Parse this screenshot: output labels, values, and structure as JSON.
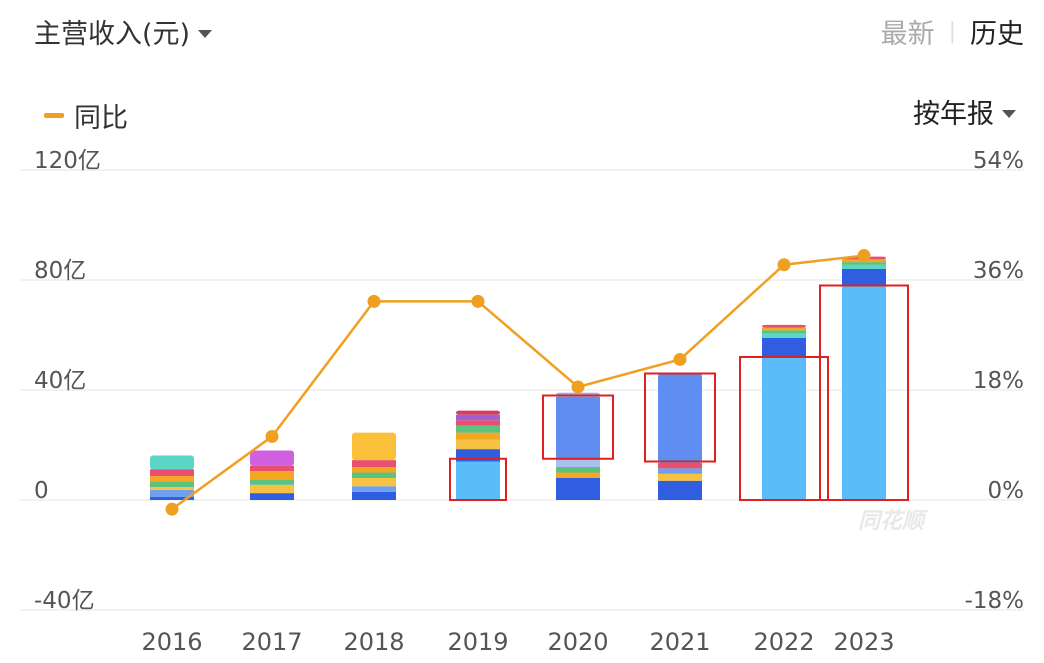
{
  "header": {
    "title": "主营收入(元)",
    "toggle_latest": "最新",
    "toggle_history": "历史",
    "legend_label": "同比",
    "period_label": "按年报"
  },
  "watermark": "同花顺",
  "colors": {
    "line": "#f0a020",
    "grid": "#eeeeee",
    "highlight_box": "#e02020"
  },
  "chart_data": {
    "type": "bar",
    "categories": [
      "2016",
      "2017",
      "2018",
      "2019",
      "2020",
      "2021",
      "2022",
      "2023"
    ],
    "left_axis": {
      "ticks": [
        "120亿",
        "80亿",
        "40亿",
        "0",
        "-40亿"
      ],
      "ylim": [
        -40,
        120
      ]
    },
    "right_axis": {
      "ticks": [
        "54%",
        "36%",
        "18%",
        "0%",
        "-18%"
      ],
      "ylim": [
        -18,
        54
      ]
    },
    "stacks": [
      [
        [
          1.2,
          "#2f5fe0"
        ],
        [
          2.5,
          "#6fa0f0"
        ],
        [
          1.0,
          "#f7c141"
        ],
        [
          2.0,
          "#5cc280"
        ],
        [
          2.0,
          "#f5a623"
        ],
        [
          2.5,
          "#e85070"
        ],
        [
          5.0,
          "#5ad6c8"
        ]
      ],
      [
        [
          2.5,
          "#2f5fe0"
        ],
        [
          3.0,
          "#f7c141"
        ],
        [
          2.0,
          "#5cc280"
        ],
        [
          3.0,
          "#f5a623"
        ],
        [
          2.0,
          "#e85070"
        ],
        [
          5.5,
          "#d060e0"
        ]
      ],
      [
        [
          3.0,
          "#2f5fe0"
        ],
        [
          2.0,
          "#6fa0f0"
        ],
        [
          3.0,
          "#f7c141"
        ],
        [
          2.0,
          "#5cc280"
        ],
        [
          2.0,
          "#f5a623"
        ],
        [
          2.5,
          "#e85070"
        ],
        [
          10.0,
          "#fbc03a"
        ]
      ],
      [
        [
          14.0,
          "#5bbcfa"
        ],
        [
          4.5,
          "#2f5fe0"
        ],
        [
          3.5,
          "#f7c141"
        ],
        [
          2.5,
          "#f5a623"
        ],
        [
          2.5,
          "#5cc280"
        ],
        [
          2.0,
          "#e85070"
        ],
        [
          2.0,
          "#a060d0"
        ],
        [
          1.5,
          "#d04060"
        ]
      ],
      [
        [
          8.0,
          "#2f5fe0"
        ],
        [
          2.0,
          "#f5a623"
        ],
        [
          2.0,
          "#5cc280"
        ],
        [
          2.5,
          "#a9c0f0"
        ],
        [
          23.0,
          "#5f8ef0"
        ],
        [
          1.5,
          "#8fb0f0"
        ]
      ],
      [
        [
          7.0,
          "#2f5fe0"
        ],
        [
          2.5,
          "#f7c141"
        ],
        [
          2.0,
          "#6fa0f0"
        ],
        [
          2.0,
          "#e85070"
        ],
        [
          32.5,
          "#5f8ef0"
        ]
      ],
      [
        [
          52.0,
          "#5bbcfa"
        ],
        [
          7.0,
          "#2f5fe0"
        ],
        [
          1.5,
          "#5ad6c8"
        ],
        [
          1.2,
          "#5cc280"
        ],
        [
          1.0,
          "#f5a623"
        ],
        [
          1.0,
          "#e85070"
        ]
      ],
      [
        [
          78.0,
          "#5bbcfa"
        ],
        [
          6.0,
          "#2f5fe0"
        ],
        [
          1.5,
          "#5ad6c8"
        ],
        [
          1.0,
          "#5cc280"
        ],
        [
          1.0,
          "#f5a623"
        ],
        [
          1.0,
          "#e85070"
        ]
      ]
    ],
    "yoy_growth_pct": [
      -1.5,
      10.4,
      32.5,
      32.5,
      18.5,
      23.0,
      38.5,
      40.0
    ],
    "highlight_boxes": [
      {
        "category": "2019",
        "from": 0,
        "to": 15
      },
      {
        "category": "2020",
        "from": 15,
        "to": 38
      },
      {
        "category": "2021",
        "from": 14,
        "to": 46
      },
      {
        "category": "2022",
        "from": 0,
        "to": 52
      },
      {
        "category": "2023",
        "from": 0,
        "to": 78
      }
    ]
  }
}
